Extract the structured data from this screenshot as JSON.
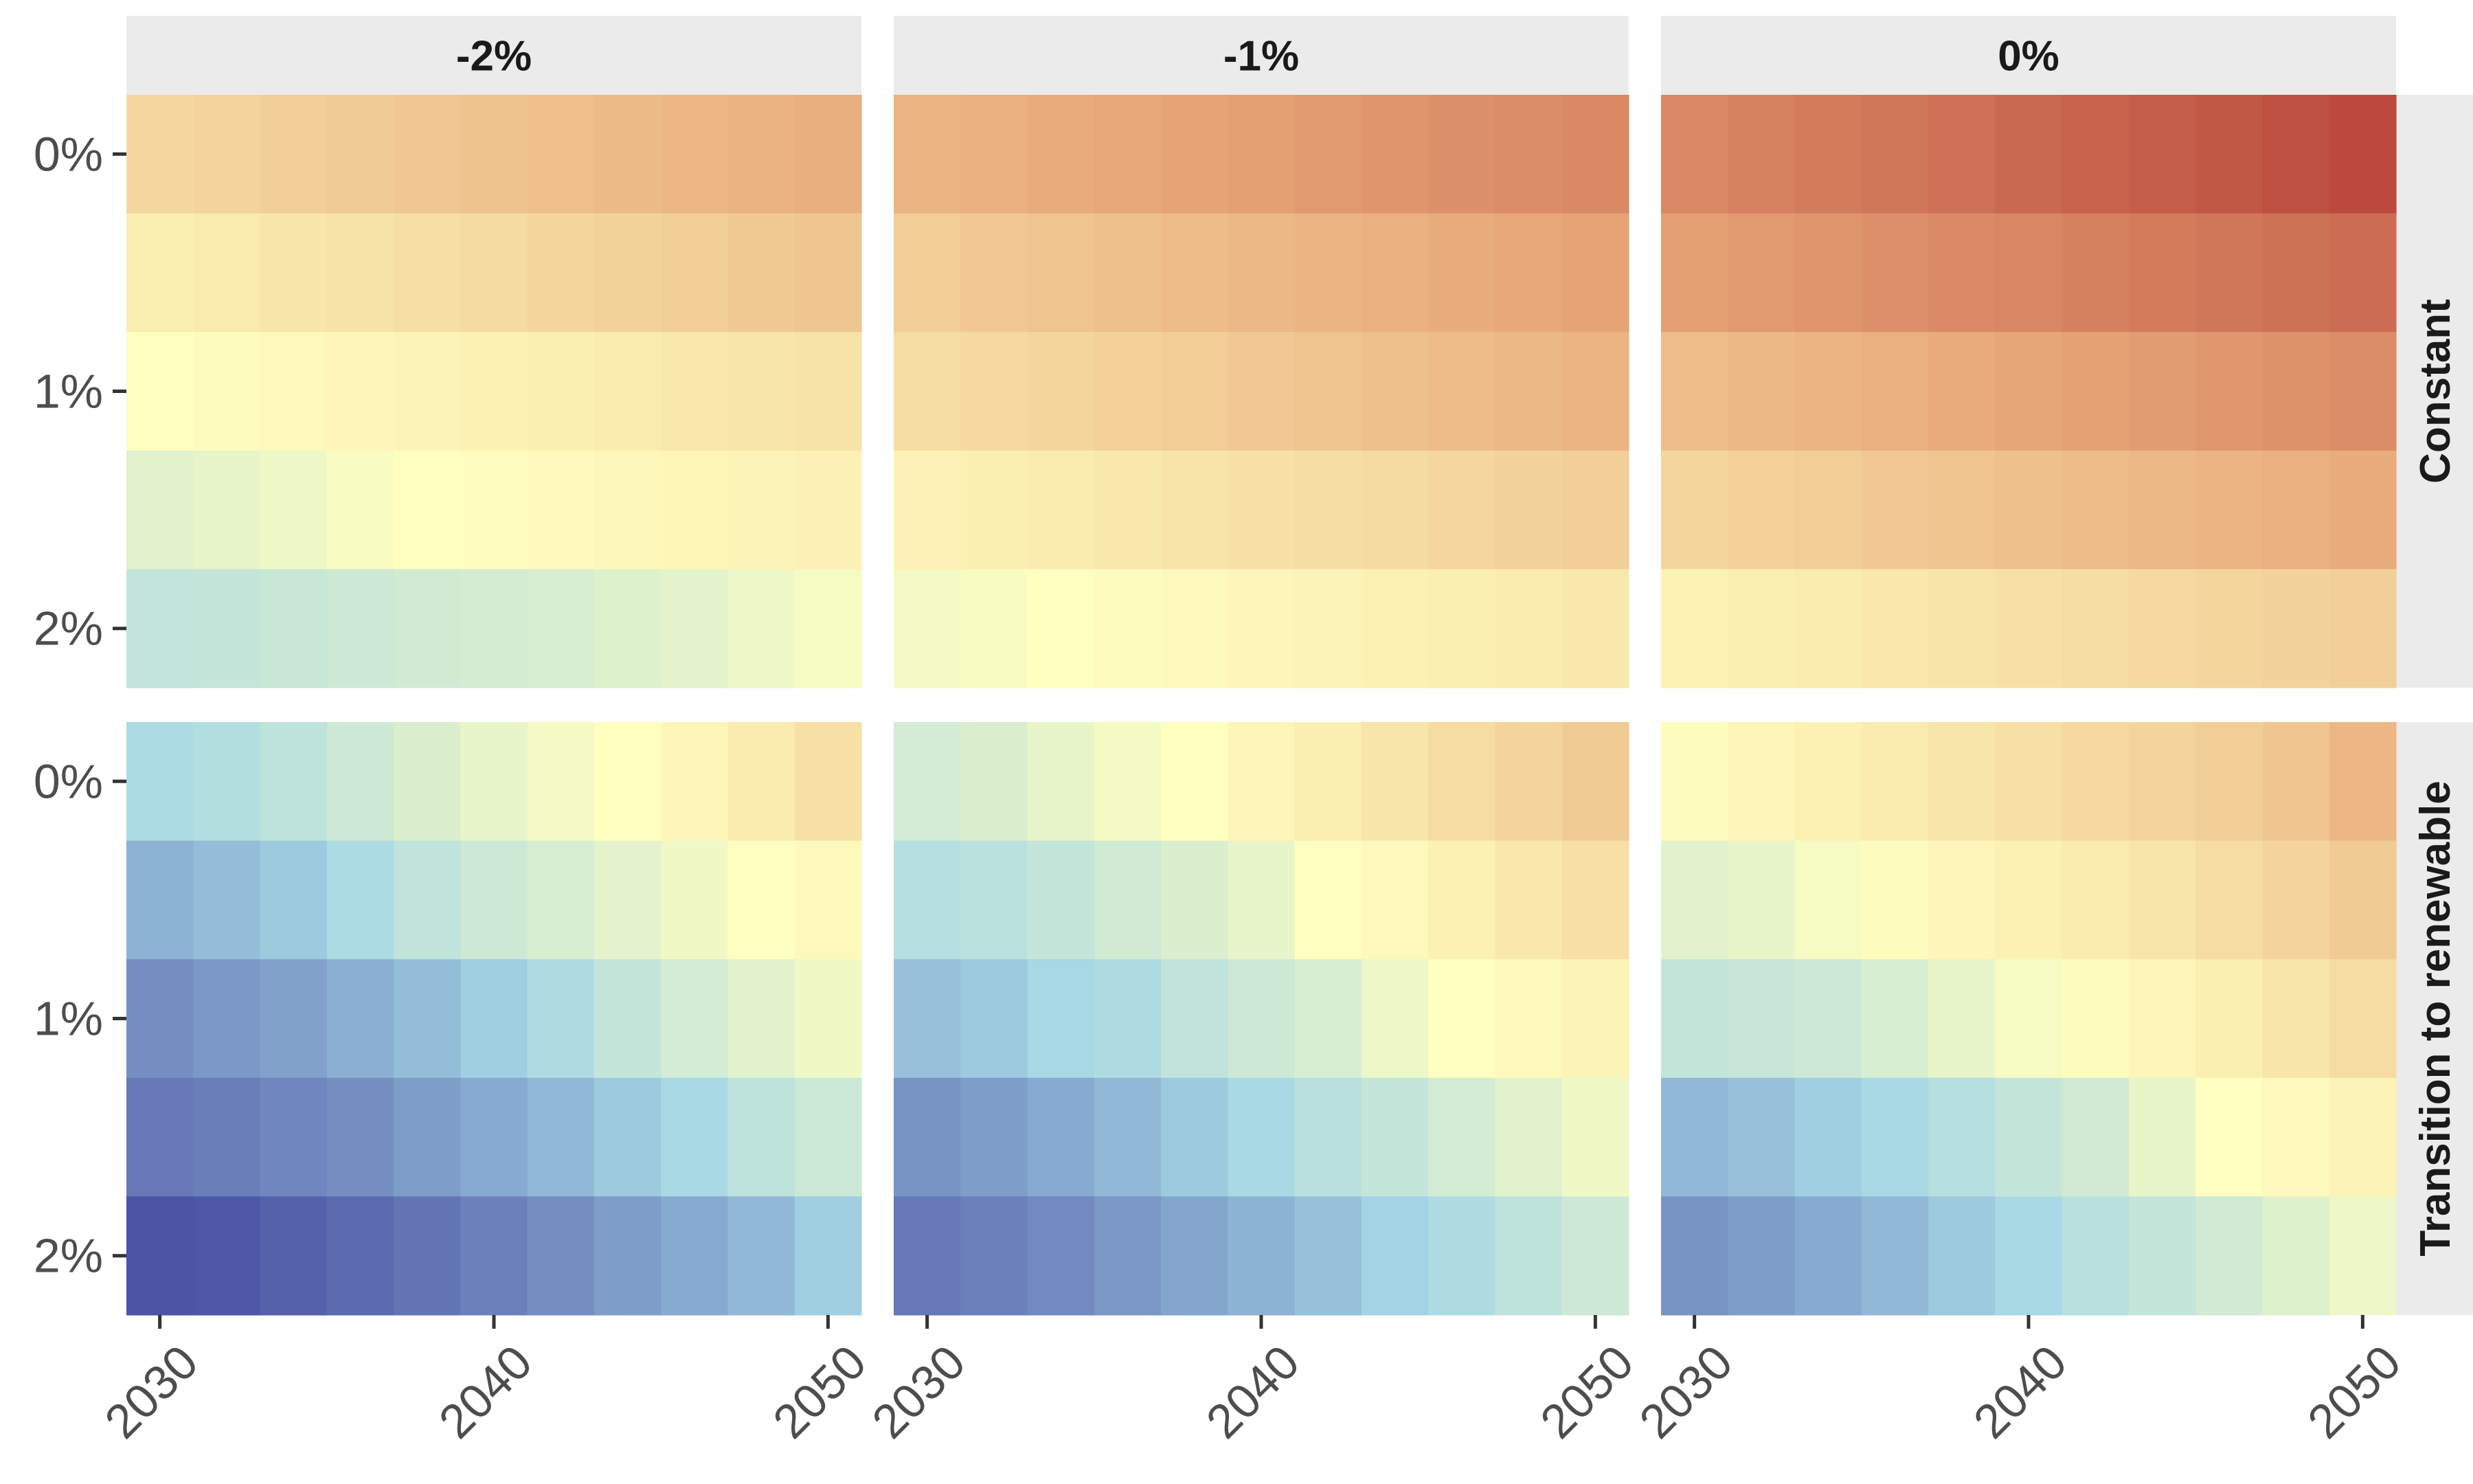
{
  "chart_data": {
    "type": "heatmap",
    "title": "",
    "xlabel": "",
    "ylabel": "",
    "legend": "none",
    "palette": [
      "#4a4fa3",
      "#a6d8e6",
      "#ffffbf",
      "#e8a878",
      "#bb4a3d"
    ],
    "value_range": [
      -3.0,
      3.0
    ],
    "x": [
      2030,
      2032,
      2034,
      2036,
      2038,
      2040,
      2042,
      2044,
      2046,
      2048,
      2050
    ],
    "x_ticks": [
      "2030",
      "2040",
      "2050"
    ],
    "y": [
      "0%",
      "0.5%",
      "1%",
      "1.5%",
      "2%"
    ],
    "y_ticks": [
      "0%",
      "1%",
      "2%"
    ],
    "column_facets": [
      "-2%",
      "-1%",
      "0%"
    ],
    "row_facets": [
      "Constant",
      "Transition to renewable"
    ],
    "panels": [
      {
        "row": "Constant",
        "col": "-2%",
        "z": [
          [
            0.68,
            0.75,
            0.82,
            0.89,
            0.96,
            1.03,
            1.1,
            1.17,
            1.24,
            1.31,
            1.38
          ],
          [
            0.29,
            0.36,
            0.43,
            0.5,
            0.57,
            0.64,
            0.71,
            0.78,
            0.85,
            0.92,
            0.99
          ],
          [
            0.0,
            0.05,
            0.1,
            0.15,
            0.2,
            0.25,
            0.3,
            0.35,
            0.4,
            0.45,
            0.5
          ],
          [
            -0.5,
            -0.4,
            -0.28,
            -0.12,
            0.0,
            0.04,
            0.08,
            0.12,
            0.16,
            0.2,
            0.24
          ],
          [
            -1.03,
            -1.0,
            -0.92,
            -0.85,
            -0.78,
            -0.72,
            -0.65,
            -0.55,
            -0.45,
            -0.3,
            -0.15
          ]
        ]
      },
      {
        "row": "Constant",
        "col": "-1%",
        "z": [
          [
            1.3,
            1.37,
            1.44,
            1.51,
            1.58,
            1.65,
            1.72,
            1.79,
            1.86,
            1.93,
            2.0
          ],
          [
            0.87,
            0.94,
            1.01,
            1.08,
            1.15,
            1.22,
            1.29,
            1.36,
            1.43,
            1.5,
            1.57
          ],
          [
            0.59,
            0.66,
            0.73,
            0.8,
            0.87,
            0.94,
            1.01,
            1.08,
            1.15,
            1.22,
            1.29
          ],
          [
            0.22,
            0.28,
            0.34,
            0.4,
            0.46,
            0.52,
            0.58,
            0.64,
            0.7,
            0.76,
            0.82
          ],
          [
            -0.2,
            -0.12,
            0.0,
            0.05,
            0.1,
            0.15,
            0.2,
            0.25,
            0.3,
            0.35,
            0.4
          ]
        ]
      },
      {
        "row": "Constant",
        "col": "0%",
        "z": [
          [
            2.0,
            2.1,
            2.2,
            2.3,
            2.4,
            2.5,
            2.6,
            2.7,
            2.8,
            2.9,
            3.0
          ],
          [
            1.64,
            1.72,
            1.8,
            1.88,
            1.96,
            2.04,
            2.12,
            2.2,
            2.28,
            2.36,
            2.44
          ],
          [
            1.13,
            1.21,
            1.29,
            1.37,
            1.45,
            1.53,
            1.61,
            1.69,
            1.77,
            1.85,
            1.93
          ],
          [
            0.73,
            0.8,
            0.87,
            0.94,
            1.01,
            1.08,
            1.15,
            1.22,
            1.29,
            1.36,
            1.43
          ],
          [
            0.23,
            0.29,
            0.35,
            0.41,
            0.47,
            0.53,
            0.59,
            0.65,
            0.71,
            0.77,
            0.83
          ]
        ]
      },
      {
        "row": "Transition to renewable",
        "col": "-2%",
        "z": [
          [
            -1.4,
            -1.28,
            -1.1,
            -0.85,
            -0.6,
            -0.4,
            -0.2,
            0.0,
            0.15,
            0.35,
            0.55
          ],
          [
            -1.9,
            -1.8,
            -1.65,
            -1.4,
            -1.05,
            -0.85,
            -0.65,
            -0.45,
            -0.25,
            0.0,
            0.1
          ],
          [
            -2.3,
            -2.2,
            -2.1,
            -1.95,
            -1.8,
            -1.6,
            -1.35,
            -1.0,
            -0.75,
            -0.5,
            -0.25
          ],
          [
            -2.55,
            -2.48,
            -2.4,
            -2.3,
            -2.15,
            -2.0,
            -1.85,
            -1.65,
            -1.45,
            -1.1,
            -0.9
          ],
          [
            -2.95,
            -2.92,
            -2.8,
            -2.7,
            -2.58,
            -2.45,
            -2.3,
            -2.15,
            -2.0,
            -1.85,
            -1.6
          ]
        ]
      },
      {
        "row": "Transition to renewable",
        "col": "-1%",
        "z": [
          [
            -0.75,
            -0.6,
            -0.4,
            -0.2,
            0.0,
            0.15,
            0.3,
            0.45,
            0.6,
            0.75,
            0.9
          ],
          [
            -1.25,
            -1.15,
            -1.0,
            -0.8,
            -0.6,
            -0.4,
            0.0,
            0.1,
            0.25,
            0.4,
            0.55
          ],
          [
            -1.75,
            -1.65,
            -1.5,
            -1.35,
            -1.05,
            -0.85,
            -0.65,
            -0.3,
            0.0,
            0.1,
            0.2
          ],
          [
            -2.25,
            -2.15,
            -2.0,
            -1.85,
            -1.65,
            -1.45,
            -1.2,
            -1.0,
            -0.75,
            -0.5,
            -0.25
          ],
          [
            -2.55,
            -2.45,
            -2.35,
            -2.2,
            -2.05,
            -1.9,
            -1.75,
            -1.55,
            -1.35,
            -1.1,
            -0.85
          ]
        ]
      },
      {
        "row": "Transition to renewable",
        "col": "0%",
        "z": [
          [
            0.05,
            0.15,
            0.25,
            0.35,
            0.45,
            0.55,
            0.65,
            0.75,
            0.85,
            1.0,
            1.25
          ],
          [
            -0.5,
            -0.4,
            -0.15,
            0.05,
            0.15,
            0.25,
            0.35,
            0.45,
            0.6,
            0.75,
            0.9
          ],
          [
            -1.0,
            -0.95,
            -0.85,
            -0.65,
            -0.4,
            -0.15,
            0.05,
            0.15,
            0.3,
            0.45,
            0.6
          ],
          [
            -1.85,
            -1.75,
            -1.6,
            -1.45,
            -1.25,
            -1.0,
            -0.8,
            -0.4,
            0.0,
            0.1,
            0.2
          ],
          [
            -2.25,
            -2.15,
            -2.0,
            -1.85,
            -1.65,
            -1.45,
            -1.2,
            -1.0,
            -0.8,
            -0.55,
            -0.3
          ]
        ]
      }
    ]
  }
}
